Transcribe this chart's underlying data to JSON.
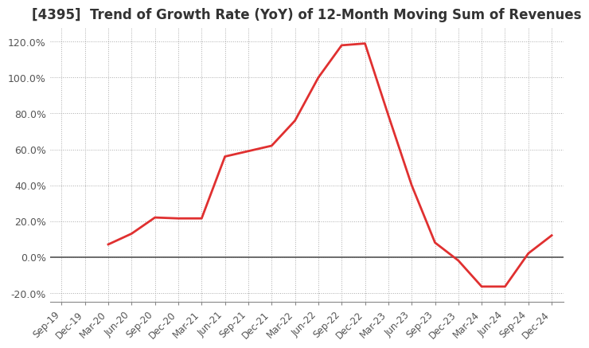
{
  "title": "[4395]  Trend of Growth Rate (YoY) of 12-Month Moving Sum of Revenues",
  "title_fontsize": 12,
  "line_color": "#e03030",
  "line_width": 2.0,
  "background_color": "#ffffff",
  "grid_color": "#aaaaaa",
  "ylim": [
    -0.25,
    1.28
  ],
  "yticks": [
    -0.2,
    0.0,
    0.2,
    0.4,
    0.6,
    0.8,
    1.0,
    1.2
  ],
  "dates": [
    "Sep-19",
    "Dec-19",
    "Mar-20",
    "Jun-20",
    "Sep-20",
    "Dec-20",
    "Mar-21",
    "Jun-21",
    "Sep-21",
    "Dec-21",
    "Mar-22",
    "Jun-22",
    "Sep-22",
    "Dec-22",
    "Mar-23",
    "Jun-23",
    "Sep-23",
    "Dec-23",
    "Mar-24",
    "Jun-24",
    "Sep-24",
    "Dec-24"
  ],
  "values": [
    null,
    null,
    0.07,
    0.13,
    0.22,
    0.215,
    0.215,
    0.56,
    0.59,
    0.62,
    0.76,
    1.0,
    1.18,
    1.19,
    0.79,
    0.4,
    0.08,
    -0.02,
    -0.165,
    -0.165,
    0.02,
    0.12
  ]
}
